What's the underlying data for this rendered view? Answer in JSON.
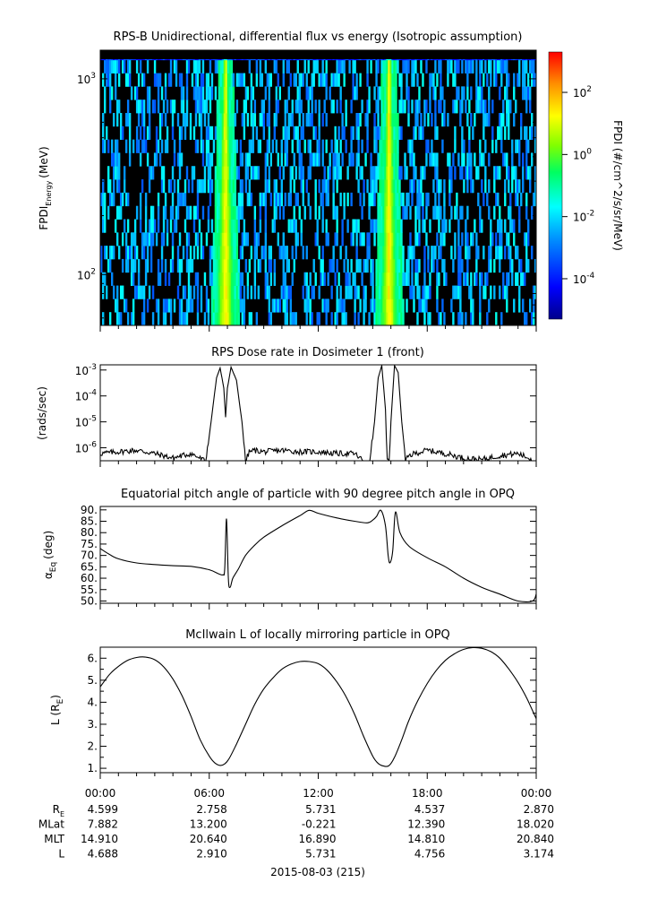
{
  "figure": {
    "date_label": "2015-08-03 (215)",
    "time_ticks": [
      "00:00",
      "06:00",
      "12:00",
      "18:00",
      "00:00"
    ],
    "ephemeris": {
      "rows": [
        {
          "label_main": "R",
          "label_sub": "E",
          "values": [
            "4.599",
            "2.758",
            "5.731",
            "4.537",
            "2.870"
          ]
        },
        {
          "label_main": "MLat",
          "label_sub": "",
          "values": [
            "7.882",
            "13.200",
            "-0.221",
            "12.390",
            "18.020"
          ]
        },
        {
          "label_main": "MLT",
          "label_sub": "",
          "values": [
            "14.910",
            "20.640",
            "16.890",
            "14.810",
            "20.840"
          ]
        },
        {
          "label_main": "L",
          "label_sub": "",
          "values": [
            "4.688",
            "2.910",
            "5.731",
            "4.756",
            "3.174"
          ]
        }
      ]
    }
  },
  "chart_data": [
    {
      "type": "heatmap",
      "title": "RPS-B  Unidirectional, differential flux vs energy (Isotropic assumption)",
      "ylabel_main": "FPDI",
      "ylabel_sub": "Energy",
      "ylabel_unit": "(MeV)",
      "yscale": "log",
      "ylim": [
        55,
        1400
      ],
      "xlim_hours": [
        0,
        24
      ],
      "y_ticks": [
        {
          "base": "10",
          "exp": "3",
          "value": 1000
        },
        {
          "base": "10",
          "exp": "2",
          "value": 100
        }
      ],
      "colorbar": {
        "label": "FPDI (#/cm^2/s/sr/MeV)",
        "scale": "log",
        "range_exp": [
          -5.3,
          3.3
        ],
        "ticks": [
          {
            "base": "10",
            "exp": "2",
            "value_exp": 2
          },
          {
            "base": "10",
            "exp": "0",
            "value_exp": 0
          },
          {
            "base": "10",
            "exp": "-2",
            "value_exp": -2
          },
          {
            "base": "10",
            "exp": "-4",
            "value_exp": -4
          }
        ]
      },
      "bright_bands_hours": [
        6.9,
        15.9
      ]
    },
    {
      "type": "line",
      "title": "RPS  Dose rate in Dosimeter 1 (front)",
      "ylabel": "(rads/sec)",
      "yscale": "log",
      "ylim_exp": [
        -6.5,
        -2.8
      ],
      "y_ticks": [
        {
          "base": "10",
          "exp": "-3",
          "value_exp": -3
        },
        {
          "base": "10",
          "exp": "-4",
          "value_exp": -4
        },
        {
          "base": "10",
          "exp": "-5",
          "value_exp": -5
        },
        {
          "base": "10",
          "exp": "-6",
          "value_exp": -6
        }
      ],
      "x": [
        0,
        1,
        2,
        3,
        4,
        5,
        5.8,
        6.1,
        6.4,
        6.6,
        6.8,
        6.9,
        7.0,
        7.2,
        7.5,
        7.8,
        8.0,
        8.2,
        8.5,
        9,
        10,
        11,
        12,
        13,
        14,
        14.8,
        15.1,
        15.3,
        15.5,
        15.7,
        15.8,
        15.9,
        16.0,
        16.2,
        16.4,
        16.6,
        16.8,
        17,
        17.3,
        18,
        19,
        20,
        21,
        22,
        23,
        24
      ],
      "y": [
        6e-07,
        7e-07,
        8e-07,
        6e-07,
        4e-07,
        6e-07,
        3e-07,
        1e-05,
        0.0005,
        0.0012,
        0.0002,
        1.5e-05,
        0.0002,
        0.0013,
        0.0004,
        1e-05,
        3e-07,
        7e-07,
        8e-07,
        7e-07,
        8e-07,
        7e-07,
        7e-07,
        6e-07,
        6e-07,
        2e-07,
        1e-05,
        0.0005,
        0.0015,
        3e-05,
        3e-07,
        3e-07,
        1e-05,
        0.0015,
        0.0008,
        1e-05,
        3e-07,
        5e-07,
        6e-07,
        8e-07,
        6e-07,
        4e-07,
        3.5e-07,
        5e-07,
        6e-07,
        3e-07
      ]
    },
    {
      "type": "line",
      "title": "Equatorial pitch angle of particle with 90 degree pitch angle in OPQ",
      "ylabel_main": "α",
      "ylabel_sub": "Eq",
      "ylabel_unit": "(deg)",
      "ylim": [
        49,
        91.5
      ],
      "y_ticks": [
        90,
        85,
        80,
        75,
        70,
        65,
        60,
        55,
        50
      ],
      "y_tick_labels": [
        "90.",
        "85.",
        "80.",
        "75.",
        "70.",
        "65.",
        "60.",
        "55.",
        "50."
      ],
      "x": [
        0,
        0.5,
        1,
        2,
        3,
        4,
        5,
        6,
        6.5,
        6.75,
        6.85,
        6.95,
        7.05,
        7.15,
        7.3,
        7.6,
        8,
        8.5,
        9,
        10,
        11,
        11.5,
        12,
        13,
        14,
        14.7,
        15.0,
        15.2,
        15.45,
        15.7,
        15.85,
        15.95,
        16.1,
        16.25,
        16.5,
        17,
        18,
        19,
        20,
        21,
        22,
        23,
        23.8,
        24
      ],
      "y": [
        73,
        70.5,
        68.5,
        66.7,
        66,
        65.5,
        65.2,
        63.7,
        62,
        61.5,
        64,
        86,
        60,
        56,
        60,
        64,
        70,
        74.5,
        78,
        83,
        87.5,
        89.8,
        88.5,
        86.5,
        85,
        84.3,
        85.5,
        87,
        89.8,
        83,
        70,
        66.8,
        72,
        89,
        80,
        74,
        69,
        65,
        60,
        56,
        53,
        50,
        50,
        53
      ]
    },
    {
      "type": "line",
      "title": "McIlwain L of locally mirroring particle in OPQ",
      "ylabel_main": "L (R",
      "ylabel_sub": "E",
      "ylabel_unit": ")",
      "ylim": [
        0.8,
        6.5
      ],
      "y_ticks": [
        6,
        5,
        4,
        3,
        2,
        1
      ],
      "y_tick_labels": [
        "6.",
        "5.",
        "4.",
        "3.",
        "2.",
        "1."
      ],
      "x": [
        0,
        0.5,
        1,
        1.5,
        2,
        2.5,
        3,
        3.5,
        4,
        4.5,
        5,
        5.5,
        6,
        6.3,
        6.6,
        6.85,
        7.1,
        7.5,
        8,
        8.5,
        9,
        9.5,
        10,
        10.5,
        11,
        11.5,
        12,
        12.5,
        13,
        13.5,
        14,
        14.5,
        15,
        15.3,
        15.6,
        15.9,
        16.2,
        16.6,
        17,
        17.5,
        18,
        18.5,
        19,
        19.5,
        20,
        20.5,
        21,
        21.5,
        22,
        22.5,
        23,
        23.5,
        24
      ],
      "y": [
        4.7,
        5.25,
        5.63,
        5.9,
        6.03,
        6.05,
        5.93,
        5.6,
        5.05,
        4.3,
        3.35,
        2.3,
        1.55,
        1.25,
        1.13,
        1.2,
        1.45,
        2.1,
        3.0,
        3.9,
        4.6,
        5.1,
        5.5,
        5.73,
        5.85,
        5.85,
        5.75,
        5.45,
        4.95,
        4.3,
        3.45,
        2.45,
        1.55,
        1.22,
        1.1,
        1.12,
        1.5,
        2.3,
        3.2,
        4.1,
        4.85,
        5.45,
        5.9,
        6.2,
        6.4,
        6.48,
        6.45,
        6.3,
        6.0,
        5.5,
        4.9,
        4.15,
        3.25
      ]
    }
  ]
}
